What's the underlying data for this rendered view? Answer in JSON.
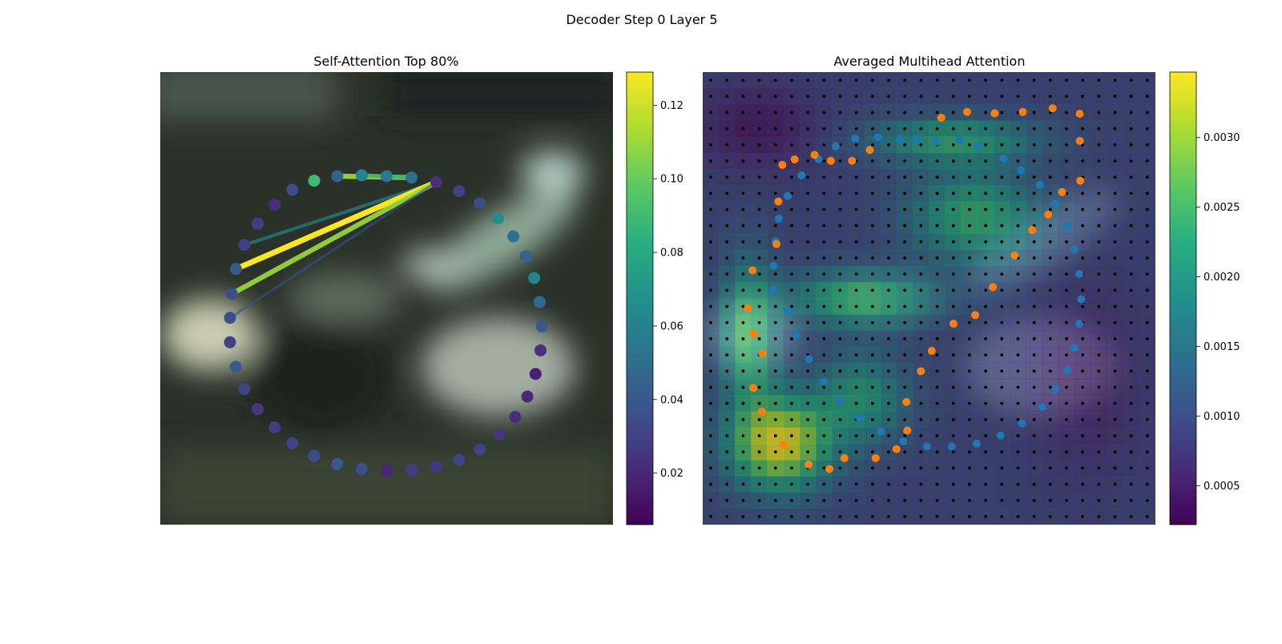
{
  "figure": {
    "suptitle": "Decoder Step 0 Layer 5"
  },
  "chart_data": [
    {
      "type": "network",
      "title": "Self-Attention Top 80%",
      "grid": false,
      "axes_visible": false,
      "background": "blurred camera image",
      "colormap": "viridis",
      "colorbar": {
        "vmin": 0.006,
        "vmax": 0.129,
        "ticks": [
          0.02,
          0.04,
          0.06,
          0.08,
          0.1,
          0.12
        ],
        "tick_labels": [
          "0.02",
          "0.04",
          "0.06",
          "0.08",
          "0.10",
          "0.12"
        ]
      },
      "nodes": [
        {
          "x": 0.5,
          "y": 0.23,
          "v": 0.055
        },
        {
          "x": 0.555,
          "y": 0.233,
          "v": 0.05
        },
        {
          "x": 0.61,
          "y": 0.243,
          "v": 0.022
        },
        {
          "x": 0.66,
          "y": 0.263,
          "v": 0.03
        },
        {
          "x": 0.706,
          "y": 0.29,
          "v": 0.035
        },
        {
          "x": 0.746,
          "y": 0.323,
          "v": 0.065
        },
        {
          "x": 0.78,
          "y": 0.363,
          "v": 0.052
        },
        {
          "x": 0.807,
          "y": 0.407,
          "v": 0.045
        },
        {
          "x": 0.826,
          "y": 0.455,
          "v": 0.06
        },
        {
          "x": 0.838,
          "y": 0.508,
          "v": 0.048
        },
        {
          "x": 0.843,
          "y": 0.562,
          "v": 0.04
        },
        {
          "x": 0.84,
          "y": 0.615,
          "v": 0.022
        },
        {
          "x": 0.829,
          "y": 0.667,
          "v": 0.018
        },
        {
          "x": 0.811,
          "y": 0.717,
          "v": 0.02
        },
        {
          "x": 0.784,
          "y": 0.762,
          "v": 0.022
        },
        {
          "x": 0.749,
          "y": 0.801,
          "v": 0.025
        },
        {
          "x": 0.706,
          "y": 0.834,
          "v": 0.03
        },
        {
          "x": 0.66,
          "y": 0.857,
          "v": 0.03
        },
        {
          "x": 0.61,
          "y": 0.872,
          "v": 0.025
        },
        {
          "x": 0.555,
          "y": 0.879,
          "v": 0.028
        },
        {
          "x": 0.5,
          "y": 0.881,
          "v": 0.02
        },
        {
          "x": 0.445,
          "y": 0.877,
          "v": 0.035
        },
        {
          "x": 0.391,
          "y": 0.866,
          "v": 0.04
        },
        {
          "x": 0.34,
          "y": 0.848,
          "v": 0.035
        },
        {
          "x": 0.292,
          "y": 0.82,
          "v": 0.03
        },
        {
          "x": 0.253,
          "y": 0.785,
          "v": 0.028
        },
        {
          "x": 0.215,
          "y": 0.745,
          "v": 0.025
        },
        {
          "x": 0.186,
          "y": 0.7,
          "v": 0.03
        },
        {
          "x": 0.167,
          "y": 0.651,
          "v": 0.04
        },
        {
          "x": 0.154,
          "y": 0.597,
          "v": 0.03
        },
        {
          "x": 0.154,
          "y": 0.543,
          "v": 0.035
        },
        {
          "x": 0.158,
          "y": 0.49,
          "v": 0.035
        },
        {
          "x": 0.167,
          "y": 0.435,
          "v": 0.04
        },
        {
          "x": 0.186,
          "y": 0.382,
          "v": 0.03
        },
        {
          "x": 0.215,
          "y": 0.335,
          "v": 0.028
        },
        {
          "x": 0.253,
          "y": 0.293,
          "v": 0.022
        },
        {
          "x": 0.292,
          "y": 0.26,
          "v": 0.035
        },
        {
          "x": 0.34,
          "y": 0.24,
          "v": 0.09
        },
        {
          "x": 0.391,
          "y": 0.23,
          "v": 0.045
        },
        {
          "x": 0.445,
          "y": 0.228,
          "v": 0.06
        }
      ],
      "edges": [
        {
          "from": 1,
          "to": 38,
          "v": 0.112
        },
        {
          "from": 1,
          "to": 39,
          "v": 0.085
        },
        {
          "from": 2,
          "to": 33,
          "v": 0.06
        },
        {
          "from": 2,
          "to": 32,
          "v": 0.129
        },
        {
          "from": 2,
          "to": 31,
          "v": 0.11
        },
        {
          "from": 2,
          "to": 30,
          "v": 0.035
        }
      ]
    },
    {
      "type": "heatmap",
      "title": "Averaged Multihead Attention",
      "grid": false,
      "axes_visible": false,
      "colormap": "viridis",
      "colorbar": {
        "vmin": 0.00022,
        "vmax": 0.00347,
        "ticks": [
          0.0005,
          0.001,
          0.0015,
          0.002,
          0.0025,
          0.003
        ],
        "tick_labels": [
          "0.0005",
          "0.0010",
          "0.0015",
          "0.0020",
          "0.0025",
          "0.0030"
        ]
      },
      "heatmap_cells": 28,
      "reference_points_per_side": 28,
      "point_colors": {
        "reference": "#000000",
        "blue_series": "#1f77b4",
        "orange_series": "#ff7f0e"
      },
      "series": [
        {
          "color": "#1f77b4",
          "points": [
            [
              0.515,
              0.154
            ],
            [
              0.568,
              0.151
            ],
            [
              0.608,
              0.164
            ],
            [
              0.664,
              0.191
            ],
            [
              0.703,
              0.217
            ],
            [
              0.745,
              0.249
            ],
            [
              0.779,
              0.291
            ],
            [
              0.805,
              0.341
            ],
            [
              0.821,
              0.392
            ],
            [
              0.832,
              0.446
            ],
            [
              0.836,
              0.502
            ],
            [
              0.832,
              0.556
            ],
            [
              0.821,
              0.609
            ],
            [
              0.805,
              0.658
            ],
            [
              0.779,
              0.701
            ],
            [
              0.75,
              0.74
            ],
            [
              0.705,
              0.776
            ],
            [
              0.658,
              0.803
            ],
            [
              0.605,
              0.821
            ],
            [
              0.55,
              0.827
            ],
            [
              0.495,
              0.827
            ],
            [
              0.443,
              0.816
            ],
            [
              0.394,
              0.794
            ],
            [
              0.347,
              0.765
            ],
            [
              0.303,
              0.726
            ],
            [
              0.267,
              0.684
            ],
            [
              0.235,
              0.634
            ],
            [
              0.206,
              0.58
            ],
            [
              0.188,
              0.528
            ],
            [
              0.156,
              0.482
            ],
            [
              0.156,
              0.428
            ],
            [
              0.161,
              0.374
            ],
            [
              0.168,
              0.324
            ],
            [
              0.188,
              0.274
            ],
            [
              0.218,
              0.228
            ],
            [
              0.256,
              0.192
            ],
            [
              0.294,
              0.164
            ],
            [
              0.337,
              0.147
            ],
            [
              0.387,
              0.144
            ],
            [
              0.436,
              0.149
            ],
            [
              0.474,
              0.149
            ]
          ]
        },
        {
          "color": "#ff7f0e",
          "points": [
            [
              0.527,
              0.101
            ],
            [
              0.584,
              0.088
            ],
            [
              0.645,
              0.091
            ],
            [
              0.707,
              0.088
            ],
            [
              0.773,
              0.08
            ],
            [
              0.833,
              0.092
            ],
            [
              0.833,
              0.152
            ],
            [
              0.834,
              0.24
            ],
            [
              0.794,
              0.265
            ],
            [
              0.763,
              0.315
            ],
            [
              0.728,
              0.349
            ],
            [
              0.689,
              0.405
            ],
            [
              0.641,
              0.475
            ],
            [
              0.602,
              0.537
            ],
            [
              0.554,
              0.556
            ],
            [
              0.506,
              0.616
            ],
            [
              0.482,
              0.661
            ],
            [
              0.45,
              0.729
            ],
            [
              0.452,
              0.792
            ],
            [
              0.428,
              0.833
            ],
            [
              0.382,
              0.853
            ],
            [
              0.313,
              0.853
            ],
            [
              0.28,
              0.877
            ],
            [
              0.234,
              0.867
            ],
            [
              0.179,
              0.824
            ],
            [
              0.131,
              0.75
            ],
            [
              0.112,
              0.698
            ],
            [
              0.132,
              0.622
            ],
            [
              0.112,
              0.578
            ],
            [
              0.1,
              0.522
            ],
            [
              0.11,
              0.438
            ],
            [
              0.163,
              0.38
            ],
            [
              0.167,
              0.286
            ],
            [
              0.176,
              0.205
            ],
            [
              0.203,
              0.193
            ],
            [
              0.247,
              0.183
            ],
            [
              0.283,
              0.196
            ],
            [
              0.33,
              0.196
            ],
            [
              0.369,
              0.172
            ]
          ]
        }
      ]
    }
  ]
}
